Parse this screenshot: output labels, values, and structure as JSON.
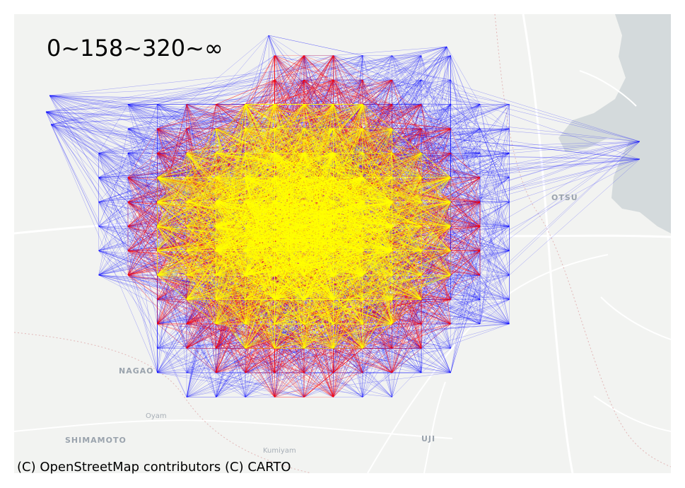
{
  "legend": {
    "title": "0~158~320~∞"
  },
  "attribution": "(C) OpenStreetMap contributors (C) CARTO",
  "places": [
    {
      "id": "otsu",
      "label": "OTSU"
    },
    {
      "id": "nagaoka",
      "label": "NAGAO"
    },
    {
      "id": "oyama",
      "label": "Oyam"
    },
    {
      "id": "shimamoto",
      "label": "SHIMAMOTO"
    },
    {
      "id": "uji",
      "label": "UJI"
    },
    {
      "id": "kumiyama",
      "label": "Kumiyam"
    }
  ],
  "flow_colors": {
    "low": "#0000ff",
    "mid": "#ff0000",
    "high": "#ffff00"
  },
  "flow_bins": [
    "0~158",
    "158~320",
    "320~∞"
  ],
  "basemap": {
    "land": "#f2f3f1",
    "water": "#d4dadc",
    "road": "#ffffff"
  }
}
